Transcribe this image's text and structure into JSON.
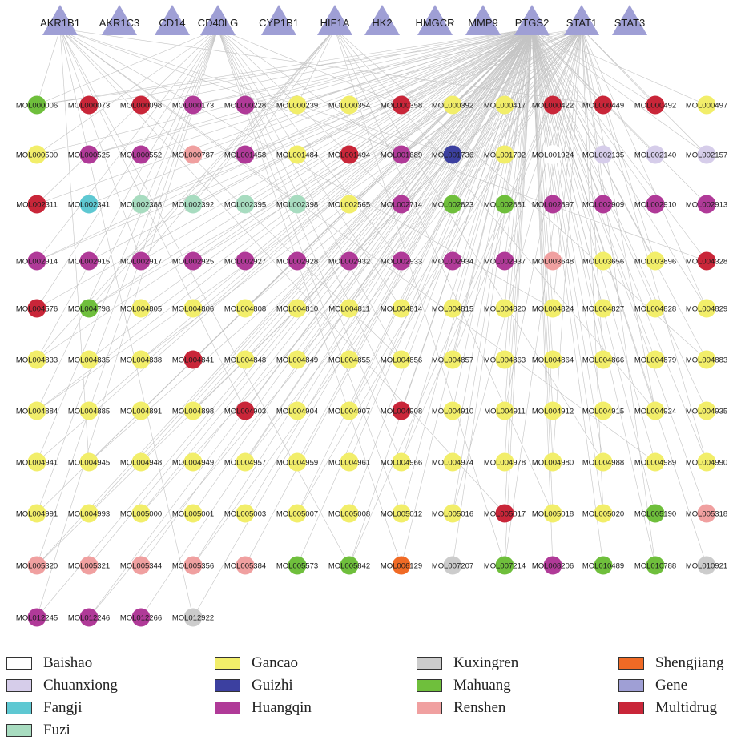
{
  "network": {
    "genes": [
      "AKR1B1",
      "AKR1C3",
      "CD14",
      "CD40LG",
      "CYP1B1",
      "HIF1A",
      "HK2",
      "HMGCR",
      "MMP9",
      "PTGS2",
      "STAT1",
      "STAT3"
    ],
    "compounds": [
      {
        "id": "MOL000006",
        "herb": "Mahuang"
      },
      {
        "id": "MOL000073",
        "herb": "Multidrug"
      },
      {
        "id": "MOL000098",
        "herb": "Multidrug"
      },
      {
        "id": "MOL000173",
        "herb": "Huangqin"
      },
      {
        "id": "MOL000228",
        "herb": "Huangqin"
      },
      {
        "id": "MOL000239",
        "herb": "Gancao"
      },
      {
        "id": "MOL000354",
        "herb": "Gancao"
      },
      {
        "id": "MOL000358",
        "herb": "Multidrug"
      },
      {
        "id": "MOL000392",
        "herb": "Gancao"
      },
      {
        "id": "MOL000417",
        "herb": "Gancao"
      },
      {
        "id": "MOL000422",
        "herb": "Multidrug"
      },
      {
        "id": "MOL000449",
        "herb": "Multidrug"
      },
      {
        "id": "MOL000492",
        "herb": "Multidrug"
      },
      {
        "id": "MOL000497",
        "herb": "Gancao"
      },
      {
        "id": "MOL000500",
        "herb": "Gancao"
      },
      {
        "id": "MOL000525",
        "herb": "Huangqin"
      },
      {
        "id": "MOL000552",
        "herb": "Huangqin"
      },
      {
        "id": "MOL000787",
        "herb": "Renshen"
      },
      {
        "id": "MOL001458",
        "herb": "Huangqin"
      },
      {
        "id": "MOL001484",
        "herb": "Gancao"
      },
      {
        "id": "MOL001494",
        "herb": "Multidrug"
      },
      {
        "id": "MOL001689",
        "herb": "Huangqin"
      },
      {
        "id": "MOL001736",
        "herb": "Guizhi"
      },
      {
        "id": "MOL001792",
        "herb": "Gancao"
      },
      {
        "id": "MOL001924",
        "herb": "Baishao"
      },
      {
        "id": "MOL002135",
        "herb": "Chuanxiong"
      },
      {
        "id": "MOL002140",
        "herb": "Chuanxiong"
      },
      {
        "id": "MOL002157",
        "herb": "Chuanxiong"
      },
      {
        "id": "MOL002311",
        "herb": "Multidrug"
      },
      {
        "id": "MOL002341",
        "herb": "Fangji"
      },
      {
        "id": "MOL002388",
        "herb": "Fuzi"
      },
      {
        "id": "MOL002392",
        "herb": "Fuzi"
      },
      {
        "id": "MOL002395",
        "herb": "Fuzi"
      },
      {
        "id": "MOL002398",
        "herb": "Fuzi"
      },
      {
        "id": "MOL002565",
        "herb": "Gancao"
      },
      {
        "id": "MOL002714",
        "herb": "Huangqin"
      },
      {
        "id": "MOL002823",
        "herb": "Mahuang"
      },
      {
        "id": "MOL002881",
        "herb": "Mahuang"
      },
      {
        "id": "MOL002897",
        "herb": "Huangqin"
      },
      {
        "id": "MOL002909",
        "herb": "Huangqin"
      },
      {
        "id": "MOL002910",
        "herb": "Huangqin"
      },
      {
        "id": "MOL002913",
        "herb": "Huangqin"
      },
      {
        "id": "MOL002914",
        "herb": "Huangqin"
      },
      {
        "id": "MOL002915",
        "herb": "Huangqin"
      },
      {
        "id": "MOL002917",
        "herb": "Huangqin"
      },
      {
        "id": "MOL002925",
        "herb": "Huangqin"
      },
      {
        "id": "MOL002927",
        "herb": "Huangqin"
      },
      {
        "id": "MOL002928",
        "herb": "Huangqin"
      },
      {
        "id": "MOL002932",
        "herb": "Huangqin"
      },
      {
        "id": "MOL002933",
        "herb": "Huangqin"
      },
      {
        "id": "MOL002934",
        "herb": "Huangqin"
      },
      {
        "id": "MOL002937",
        "herb": "Huangqin"
      },
      {
        "id": "MOL003648",
        "herb": "Renshen"
      },
      {
        "id": "MOL003656",
        "herb": "Gancao"
      },
      {
        "id": "MOL003896",
        "herb": "Gancao"
      },
      {
        "id": "MOL004328",
        "herb": "Multidrug"
      },
      {
        "id": "MOL004576",
        "herb": "Multidrug"
      },
      {
        "id": "MOL004798",
        "herb": "Mahuang"
      },
      {
        "id": "MOL004805",
        "herb": "Gancao"
      },
      {
        "id": "MOL004806",
        "herb": "Gancao"
      },
      {
        "id": "MOL004808",
        "herb": "Gancao"
      },
      {
        "id": "MOL004810",
        "herb": "Gancao"
      },
      {
        "id": "MOL004811",
        "herb": "Gancao"
      },
      {
        "id": "MOL004814",
        "herb": "Gancao"
      },
      {
        "id": "MOL004815",
        "herb": "Gancao"
      },
      {
        "id": "MOL004820",
        "herb": "Gancao"
      },
      {
        "id": "MOL004824",
        "herb": "Gancao"
      },
      {
        "id": "MOL004827",
        "herb": "Gancao"
      },
      {
        "id": "MOL004828",
        "herb": "Gancao"
      },
      {
        "id": "MOL004829",
        "herb": "Gancao"
      },
      {
        "id": "MOL004833",
        "herb": "Gancao"
      },
      {
        "id": "MOL004835",
        "herb": "Gancao"
      },
      {
        "id": "MOL004838",
        "herb": "Gancao"
      },
      {
        "id": "MOL004841",
        "herb": "Multidrug"
      },
      {
        "id": "MOL004848",
        "herb": "Gancao"
      },
      {
        "id": "MOL004849",
        "herb": "Gancao"
      },
      {
        "id": "MOL004855",
        "herb": "Gancao"
      },
      {
        "id": "MOL004856",
        "herb": "Gancao"
      },
      {
        "id": "MOL004857",
        "herb": "Gancao"
      },
      {
        "id": "MOL004863",
        "herb": "Gancao"
      },
      {
        "id": "MOL004864",
        "herb": "Gancao"
      },
      {
        "id": "MOL004866",
        "herb": "Gancao"
      },
      {
        "id": "MOL004879",
        "herb": "Gancao"
      },
      {
        "id": "MOL004883",
        "herb": "Gancao"
      },
      {
        "id": "MOL004884",
        "herb": "Gancao"
      },
      {
        "id": "MOL004885",
        "herb": "Gancao"
      },
      {
        "id": "MOL004891",
        "herb": "Gancao"
      },
      {
        "id": "MOL004898",
        "herb": "Gancao"
      },
      {
        "id": "MOL004903",
        "herb": "Multidrug"
      },
      {
        "id": "MOL004904",
        "herb": "Gancao"
      },
      {
        "id": "MOL004907",
        "herb": "Gancao"
      },
      {
        "id": "MOL004908",
        "herb": "Multidrug"
      },
      {
        "id": "MOL004910",
        "herb": "Gancao"
      },
      {
        "id": "MOL004911",
        "herb": "Gancao"
      },
      {
        "id": "MOL004912",
        "herb": "Gancao"
      },
      {
        "id": "MOL004915",
        "herb": "Gancao"
      },
      {
        "id": "MOL004924",
        "herb": "Gancao"
      },
      {
        "id": "MOL004935",
        "herb": "Gancao"
      },
      {
        "id": "MOL004941",
        "herb": "Gancao"
      },
      {
        "id": "MOL004945",
        "herb": "Gancao"
      },
      {
        "id": "MOL004948",
        "herb": "Gancao"
      },
      {
        "id": "MOL004949",
        "herb": "Gancao"
      },
      {
        "id": "MOL004957",
        "herb": "Gancao"
      },
      {
        "id": "MOL004959",
        "herb": "Gancao"
      },
      {
        "id": "MOL004961",
        "herb": "Gancao"
      },
      {
        "id": "MOL004966",
        "herb": "Gancao"
      },
      {
        "id": "MOL004974",
        "herb": "Gancao"
      },
      {
        "id": "MOL004978",
        "herb": "Gancao"
      },
      {
        "id": "MOL004980",
        "herb": "Gancao"
      },
      {
        "id": "MOL004988",
        "herb": "Gancao"
      },
      {
        "id": "MOL004989",
        "herb": "Gancao"
      },
      {
        "id": "MOL004990",
        "herb": "Gancao"
      },
      {
        "id": "MOL004991",
        "herb": "Gancao"
      },
      {
        "id": "MOL004993",
        "herb": "Gancao"
      },
      {
        "id": "MOL005000",
        "herb": "Gancao"
      },
      {
        "id": "MOL005001",
        "herb": "Gancao"
      },
      {
        "id": "MOL005003",
        "herb": "Gancao"
      },
      {
        "id": "MOL005007",
        "herb": "Gancao"
      },
      {
        "id": "MOL005008",
        "herb": "Gancao"
      },
      {
        "id": "MOL005012",
        "herb": "Gancao"
      },
      {
        "id": "MOL005016",
        "herb": "Gancao"
      },
      {
        "id": "MOL005017",
        "herb": "Multidrug"
      },
      {
        "id": "MOL005018",
        "herb": "Gancao"
      },
      {
        "id": "MOL005020",
        "herb": "Gancao"
      },
      {
        "id": "MOL005190",
        "herb": "Mahuang"
      },
      {
        "id": "MOL005318",
        "herb": "Renshen"
      },
      {
        "id": "MOL005320",
        "herb": "Renshen"
      },
      {
        "id": "MOL005321",
        "herb": "Renshen"
      },
      {
        "id": "MOL005344",
        "herb": "Renshen"
      },
      {
        "id": "MOL005356",
        "herb": "Renshen"
      },
      {
        "id": "MOL005384",
        "herb": "Renshen"
      },
      {
        "id": "MOL005573",
        "herb": "Mahuang"
      },
      {
        "id": "MOL005842",
        "herb": "Mahuang"
      },
      {
        "id": "MOL006129",
        "herb": "Shengjiang"
      },
      {
        "id": "MOL007207",
        "herb": "Kuxingren"
      },
      {
        "id": "MOL007214",
        "herb": "Mahuang"
      },
      {
        "id": "MOL008206",
        "herb": "Huangqin"
      },
      {
        "id": "MOL010489",
        "herb": "Mahuang"
      },
      {
        "id": "MOL010788",
        "herb": "Mahuang"
      },
      {
        "id": "MOL010921",
        "herb": "Kuxingren"
      },
      {
        "id": "MOL012245",
        "herb": "Huangqin"
      },
      {
        "id": "MOL012246",
        "herb": "Huangqin"
      },
      {
        "id": "MOL012266",
        "herb": "Huangqin"
      },
      {
        "id": "MOL012922",
        "herb": "Kuxingren"
      }
    ],
    "edge_color": "#c4c4c4"
  },
  "legend": [
    {
      "label": "Baishao",
      "color": "#ffffff"
    },
    {
      "label": "Chuanxiong",
      "color": "#d6cdea"
    },
    {
      "label": "Fangji",
      "color": "#5ec8d2"
    },
    {
      "label": "Fuzi",
      "color": "#a8dcc0"
    },
    {
      "label": "Gancao",
      "color": "#f2ee6a"
    },
    {
      "label": "Guizhi",
      "color": "#3c40a0"
    },
    {
      "label": "Huangqin",
      "color": "#b03a98"
    },
    {
      "label": "Kuxingren",
      "color": "#cccccc"
    },
    {
      "label": "Mahuang",
      "color": "#6fbf3c"
    },
    {
      "label": "Renshen",
      "color": "#f0a0a0"
    },
    {
      "label": "Shengjiang",
      "color": "#f06a25"
    },
    {
      "label": "Gene",
      "color": "#9f9fd5"
    },
    {
      "label": "Multidrug",
      "color": "#c92639"
    }
  ]
}
